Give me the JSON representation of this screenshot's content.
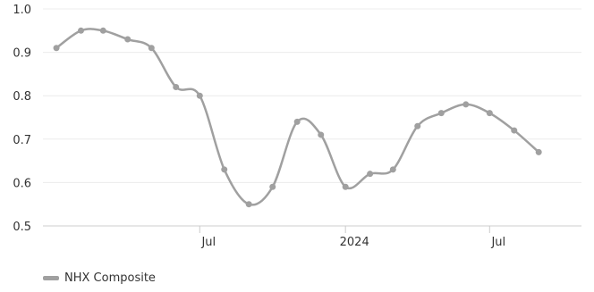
{
  "chart_data": {
    "type": "line",
    "title": "",
    "xlabel": "",
    "ylabel": "",
    "ylim": [
      0.5,
      1.0
    ],
    "yticks": [
      "0.5",
      "0.6",
      "0.7",
      "0.8",
      "0.9",
      "1.0"
    ],
    "xlim": [
      "2022-12-15",
      "2024-10-25"
    ],
    "xticks": [
      {
        "label": "Jul",
        "date": "2023-07-01"
      },
      {
        "label": "2024",
        "date": "2024-01-01"
      },
      {
        "label": "Jul",
        "date": "2024-07-01"
      }
    ],
    "grid": true,
    "legend_position": "bottom-left",
    "series": [
      {
        "name": "NHX Composite",
        "color": "#a0a0a0",
        "points": [
          {
            "x": "2023-01-01",
            "y": 0.91
          },
          {
            "x": "2023-02-01",
            "y": 0.95
          },
          {
            "x": "2023-03-01",
            "y": 0.95
          },
          {
            "x": "2023-04-01",
            "y": 0.93
          },
          {
            "x": "2023-05-01",
            "y": 0.91
          },
          {
            "x": "2023-06-01",
            "y": 0.82
          },
          {
            "x": "2023-07-01",
            "y": 0.8
          },
          {
            "x": "2023-08-01",
            "y": 0.63
          },
          {
            "x": "2023-09-01",
            "y": 0.55
          },
          {
            "x": "2023-10-01",
            "y": 0.59
          },
          {
            "x": "2023-11-01",
            "y": 0.74
          },
          {
            "x": "2023-12-01",
            "y": 0.71
          },
          {
            "x": "2024-01-01",
            "y": 0.59
          },
          {
            "x": "2024-02-01",
            "y": 0.62
          },
          {
            "x": "2024-03-01",
            "y": 0.63
          },
          {
            "x": "2024-04-01",
            "y": 0.73
          },
          {
            "x": "2024-05-01",
            "y": 0.76
          },
          {
            "x": "2024-06-01",
            "y": 0.78
          },
          {
            "x": "2024-07-01",
            "y": 0.76
          },
          {
            "x": "2024-08-01",
            "y": 0.72
          },
          {
            "x": "2024-09-01",
            "y": 0.67
          }
        ]
      }
    ]
  }
}
